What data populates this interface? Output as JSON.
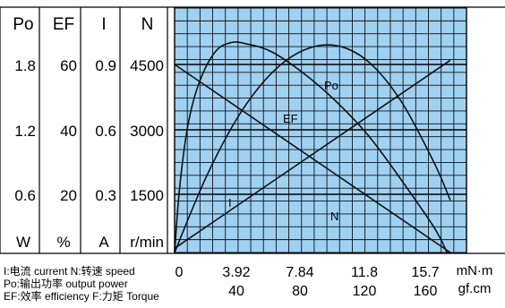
{
  "chart_data": {
    "type": "line",
    "columns": [
      {
        "header": "Po",
        "ticks": [
          "1.8",
          "1.2",
          "0.6"
        ],
        "unit": "W"
      },
      {
        "header": "EF",
        "ticks": [
          "60",
          "40",
          "20"
        ],
        "unit": "%"
      },
      {
        "header": "I",
        "ticks": [
          "0.9",
          "0.6",
          "0.3"
        ],
        "unit": "A"
      },
      {
        "header": "N",
        "ticks": [
          "4500",
          "3000",
          "1500"
        ],
        "unit": "r/min"
      }
    ],
    "x_ticks_mn": [
      "0",
      "3.92",
      "7.84",
      "11.8",
      "15.7"
    ],
    "x_ticks_gf": [
      "40",
      "80",
      "120",
      "160"
    ],
    "x_unit_mn": "mN·m",
    "x_unit_gf": "gf.cm",
    "x_range_gf": [
      0,
      180
    ],
    "series": [
      {
        "name": "N",
        "axis": "N",
        "x": [
          0,
          30,
          60,
          90,
          120,
          150,
          170
        ],
        "y": [
          4500,
          3700,
          2900,
          2100,
          1300,
          500,
          0
        ]
      },
      {
        "name": "I",
        "axis": "I",
        "x": [
          0,
          30,
          60,
          90,
          120,
          150,
          170
        ],
        "y": [
          0.02,
          0.18,
          0.34,
          0.5,
          0.66,
          0.82,
          0.92
        ]
      },
      {
        "name": "Po",
        "axis": "Po",
        "x": [
          0,
          20,
          40,
          60,
          80,
          100,
          120,
          140,
          160,
          170
        ],
        "y": [
          0,
          0.74,
          1.32,
          1.72,
          1.94,
          1.98,
          1.82,
          1.44,
          0.86,
          0.5
        ]
      },
      {
        "name": "EF",
        "axis": "EF",
        "x": [
          0,
          3,
          8,
          15,
          25,
          35,
          45,
          60,
          80,
          100,
          120,
          140,
          160,
          168
        ],
        "y": [
          0,
          20,
          40,
          54,
          64,
          67,
          66.5,
          64,
          57,
          48,
          37,
          23,
          8,
          0
        ]
      }
    ],
    "legend": [
      "I:电流 current  N:转速 speed",
      "Po:输出功率 output power",
      "EF:效率 efficiency  F:力矩 Torque"
    ],
    "grid": true,
    "colors": {
      "plot_bg": "#9fd1f2",
      "grid": "#111111",
      "curve": "#111111"
    }
  }
}
